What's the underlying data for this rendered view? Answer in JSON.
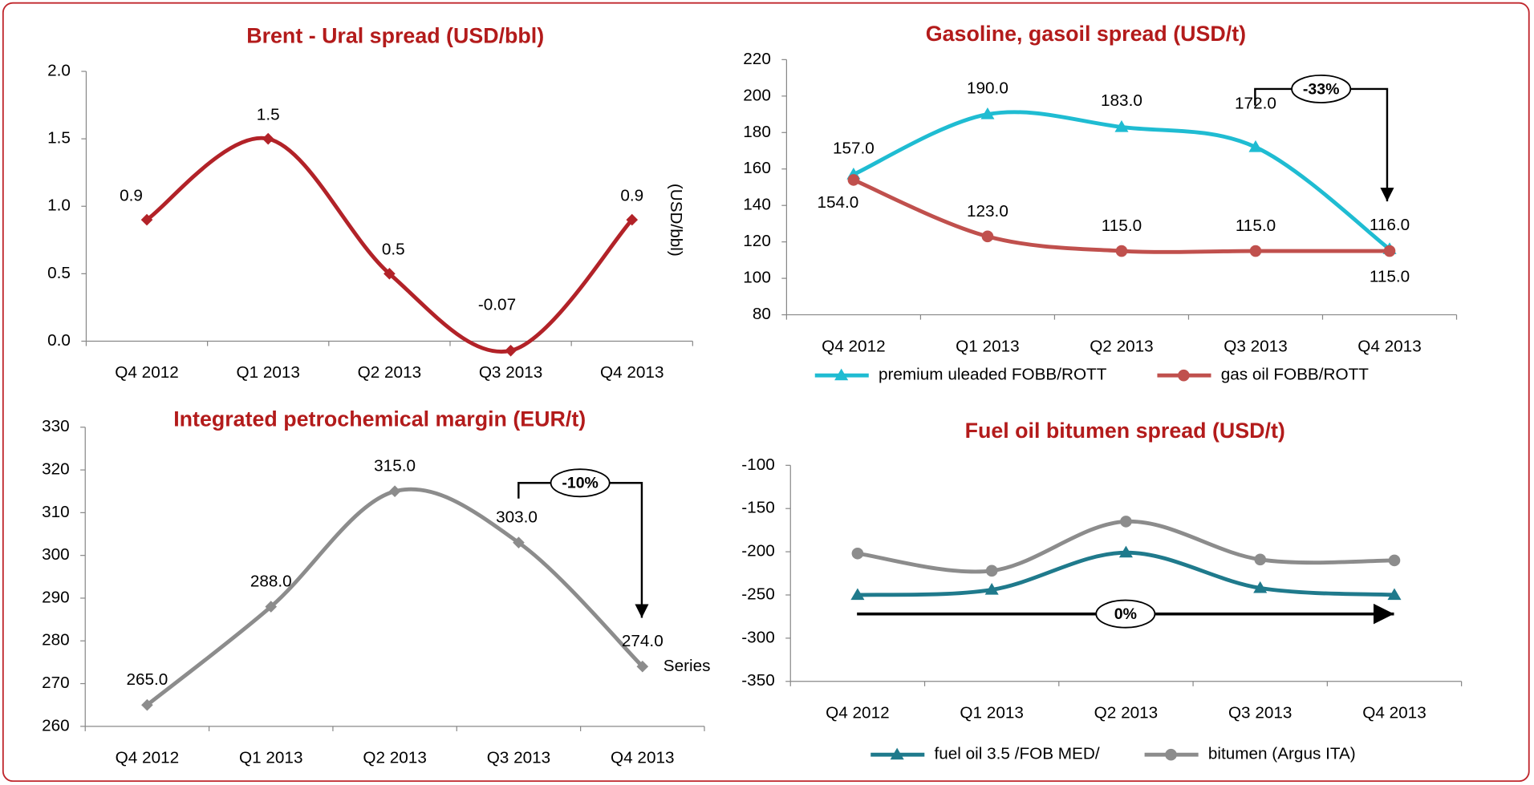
{
  "chart_data": [
    {
      "type": "line",
      "title": "Brent - Ural spread (USD/bbl)",
      "y_label": "(USD/bbl)",
      "categories": [
        "Q4 2012",
        "Q1 2013",
        "Q2 2013",
        "Q3 2013",
        "Q4 2013"
      ],
      "series": [
        {
          "color": "#b22228",
          "marker": "diamond",
          "values": [
            0.9,
            1.5,
            0.5,
            -0.07,
            0.9
          ],
          "value_labels": [
            "0.9",
            "1.5",
            "0.5",
            "-0.07",
            "0.9"
          ]
        }
      ],
      "ylim": [
        0,
        2
      ],
      "yticks": [
        {
          "value": 0,
          "label": "0.0"
        },
        {
          "value": 0.5,
          "label": "0.5"
        },
        {
          "value": 1,
          "label": "1.0"
        },
        {
          "value": 1.5,
          "label": "1.5"
        },
        {
          "value": 2,
          "label": "2.0"
        }
      ]
    },
    {
      "type": "line",
      "title": "Gasoline, gasoil spread (USD/t)",
      "annotation": "-33%",
      "categories": [
        "Q4 2012",
        "Q1 2013",
        "Q2 2013",
        "Q3 2013",
        "Q4 2013"
      ],
      "series": [
        {
          "name": "premium uleaded FOBB/ROTT",
          "color": "#1fbcd2",
          "marker": "triangle",
          "values": [
            157,
            190,
            183,
            172,
            116
          ],
          "value_labels": [
            "157.0",
            "190.0",
            "183.0",
            "172.0",
            "116.0"
          ]
        },
        {
          "name": "gas oil FOBB/ROTT",
          "color": "#c0504d",
          "marker": "circle",
          "values": [
            154,
            123,
            115,
            115,
            115
          ],
          "value_labels": [
            "154.0",
            "123.0",
            "115.0",
            "115.0",
            "115.0"
          ]
        }
      ],
      "ylim": [
        80,
        220
      ],
      "yticks": [
        80,
        100,
        120,
        140,
        160,
        180,
        200,
        220
      ],
      "legend": "bottom"
    },
    {
      "type": "line",
      "title": "Integrated petrochemical margin (EUR/t)",
      "annotation": "-10%",
      "categories": [
        "Q4 2012",
        "Q1 2013",
        "Q2 2013",
        "Q3 2013",
        "Q4 2013"
      ],
      "series": [
        {
          "name": "Series",
          "color": "#8c8c8c",
          "marker": "diamond",
          "values": [
            265,
            288,
            315,
            303,
            274
          ],
          "value_labels": [
            "265.0",
            "288.0",
            "315.0",
            "303.0",
            "274.0"
          ]
        }
      ],
      "ylim": [
        260,
        330
      ],
      "yticks": [
        260,
        270,
        280,
        290,
        300,
        310,
        320,
        330
      ],
      "legend": "right"
    },
    {
      "type": "line",
      "title": "Fuel oil bitumen spread (USD/t)",
      "annotation": "0%",
      "categories": [
        "Q4 2012",
        "Q1 2013",
        "Q2 2013",
        "Q3 2013",
        "Q4 2013"
      ],
      "series": [
        {
          "name": "fuel oil 3.5 /FOB MED/",
          "color": "#1f7a8c",
          "marker": "triangle",
          "values": [
            -250,
            -244,
            -201,
            -242,
            -250
          ]
        },
        {
          "name": "bitumen (Argus ITA)",
          "color": "#8c8c8c",
          "marker": "circle",
          "values": [
            -202,
            -222,
            -165,
            -209,
            -210
          ]
        }
      ],
      "ylim": [
        -350,
        -100
      ],
      "yticks": [
        -350,
        -300,
        -250,
        -200,
        -150,
        -100
      ],
      "legend": "bottom"
    }
  ]
}
